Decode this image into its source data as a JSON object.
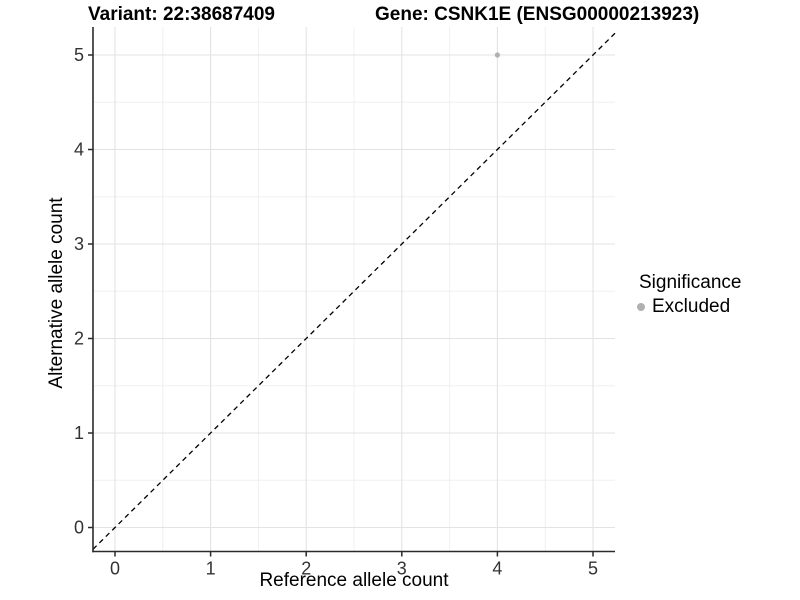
{
  "chart_data": {
    "type": "scatter",
    "titles": {
      "left": "Variant: 22:38687409",
      "right": "Gene: CSNK1E (ENSG00000213923)"
    },
    "xlabel": "Reference allele count",
    "ylabel": "Alternative allele count",
    "x_ticks": [
      0,
      1,
      2,
      3,
      4,
      5
    ],
    "y_ticks": [
      0,
      1,
      2,
      3,
      4,
      5
    ],
    "xlim": [
      -0.23,
      5.23
    ],
    "ylim": [
      -0.25,
      5.3
    ],
    "grid": {
      "major": true,
      "minor": true
    },
    "series": [
      {
        "name": "Excluded",
        "color": "#b0b0b0",
        "points": [
          {
            "x": 4,
            "y": 5
          }
        ]
      }
    ],
    "reference_line": {
      "kind": "identity",
      "style": "dashed",
      "color": "#000000"
    },
    "legend": {
      "title": "Significance",
      "position": "right",
      "items": [
        {
          "label": "Excluded",
          "color": "#b0b0b0"
        }
      ]
    }
  },
  "colors": {
    "background": "#ffffff",
    "axis": "#2b2b2b",
    "tick_label": "#333333",
    "grid_major": "#e3e3e3",
    "grid_minor": "#f0f0f0"
  }
}
